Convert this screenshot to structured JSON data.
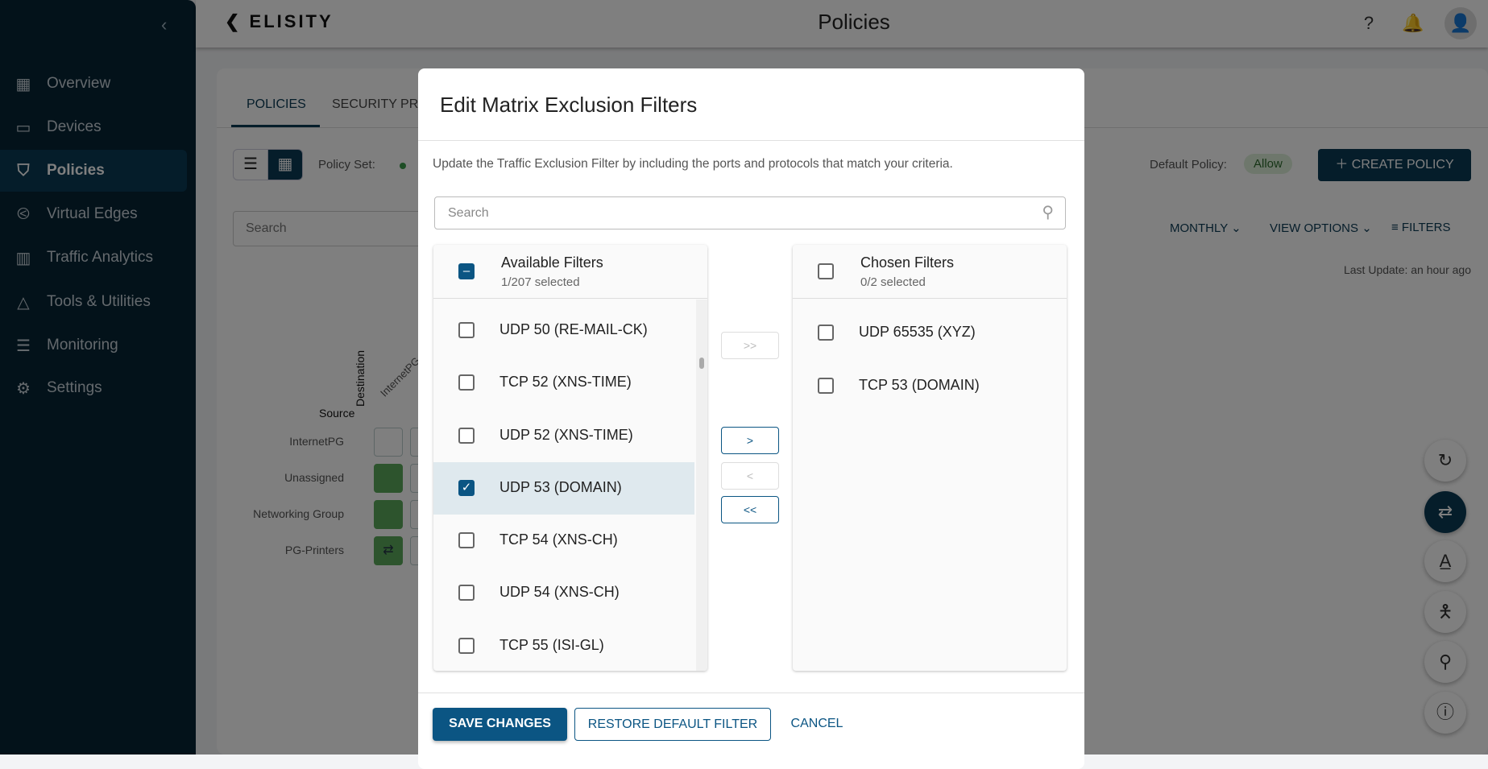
{
  "app": {
    "logo": "ELISITY",
    "page_title": "Policies"
  },
  "sidebar": {
    "items": [
      {
        "label": "Overview",
        "icon": "dashboard-icon"
      },
      {
        "label": "Devices",
        "icon": "devices-icon"
      },
      {
        "label": "Policies",
        "icon": "shield-icon",
        "active": true
      },
      {
        "label": "Virtual Edges",
        "icon": "virtual-edge-icon"
      },
      {
        "label": "Traffic Analytics",
        "icon": "analytics-icon"
      },
      {
        "label": "Tools & Utilities",
        "icon": "tools-icon"
      },
      {
        "label": "Monitoring",
        "icon": "monitor-icon"
      },
      {
        "label": "Settings",
        "icon": "gear-icon"
      }
    ]
  },
  "main": {
    "tabs": [
      "POLICIES",
      "SECURITY PRO"
    ],
    "policy_set_label": "Policy Set:",
    "search_placeholder": "Search",
    "default_policy_label": "Default Policy:",
    "default_policy_value": "Allow",
    "create_policy": "CREATE POLICY",
    "monthly": "MONTHLY",
    "view_options": "VIEW OPTIONS",
    "filters": "FILTERS",
    "last_update": "Last Update: an hour ago",
    "matrix": {
      "source_label": "Source",
      "destination_label": "Destination",
      "column": "InternetPG",
      "rows": [
        "InternetPG",
        "Unassigned",
        "Networking Group",
        "PG-Printers"
      ]
    }
  },
  "modal": {
    "title": "Edit Matrix Exclusion Filters",
    "description": "Update the Traffic Exclusion Filter by including the ports and protocols that match your criteria.",
    "search_placeholder": "Search",
    "available": {
      "title": "Available Filters",
      "count": "1/207 selected",
      "items": [
        {
          "label": "UDP 50 (RE-MAIL-CK)",
          "checked": false
        },
        {
          "label": "TCP 52 (XNS-TIME)",
          "checked": false
        },
        {
          "label": "UDP 52 (XNS-TIME)",
          "checked": false
        },
        {
          "label": "UDP 53 (DOMAIN)",
          "checked": true
        },
        {
          "label": "TCP 54 (XNS-CH)",
          "checked": false
        },
        {
          "label": "UDP 54 (XNS-CH)",
          "checked": false
        },
        {
          "label": "TCP 55 (ISI-GL)",
          "checked": false
        }
      ]
    },
    "chosen": {
      "title": "Chosen Filters",
      "count": "0/2 selected",
      "items": [
        {
          "label": "UDP 65535 (XYZ)",
          "checked": false
        },
        {
          "label": "TCP 53 (DOMAIN)",
          "checked": false
        }
      ]
    },
    "move": {
      "all_right": ">>",
      "right": ">",
      "left": "<",
      "all_left": "<<"
    },
    "save": "SAVE CHANGES",
    "restore": "RESTORE DEFAULT FILTER",
    "cancel": "CANCEL"
  },
  "colors": {
    "primary": "#0b5583",
    "sidebar": "#062435",
    "allow": "#5aa85a"
  }
}
